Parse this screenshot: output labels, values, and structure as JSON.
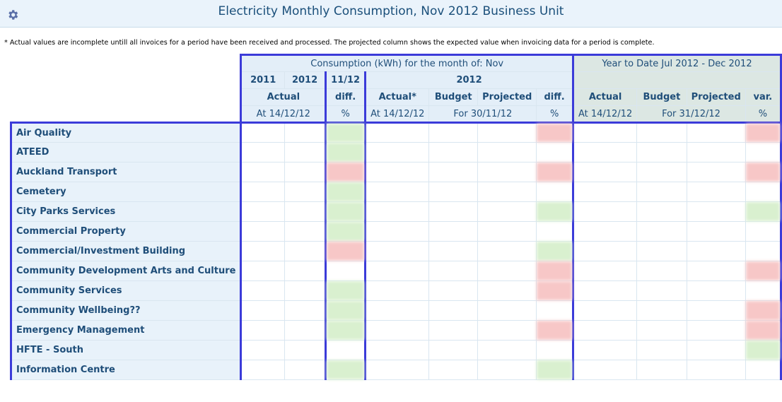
{
  "header": {
    "title": "Electricity  Monthly Consumption, Nov 2012 Business Unit",
    "settings_icon": "gear-icon"
  },
  "note": "* Actual values are incomplete untill all invoices for a period have been received and processed. The projected column shows the expected value when invoicing data for a period is complete.",
  "table": {
    "group_month": "Consumption (kWh) for the month of: Nov",
    "group_ytd": "Year to Date Jul 2012 - Dec 2012",
    "year_2011": "2011",
    "year_2012": "2012",
    "year_1112": "11/12",
    "year_2012b": "2012",
    "h_actual": "Actual",
    "h_diff": "diff.",
    "h_actual_star": "Actual*",
    "h_budget": "Budget",
    "h_projected": "Projected",
    "h_diff2": "diff.",
    "h_ytd_actual": "Actual",
    "h_ytd_budget": "Budget",
    "h_ytd_projected": "Projected",
    "h_var": "var.",
    "s_at1": "At 14/12/12",
    "s_pct1": "%",
    "s_at2": "At 14/12/12",
    "s_for1": "For 30/11/12",
    "s_pct2": "%",
    "s_at3": "At 14/12/12",
    "s_for2": "For 31/12/12",
    "s_pct3": "%",
    "rows": [
      {
        "label": "Air Quality"
      },
      {
        "label": "ATEED"
      },
      {
        "label": "Auckland Transport"
      },
      {
        "label": "Cemetery"
      },
      {
        "label": "City Parks Services"
      },
      {
        "label": "Commercial Property"
      },
      {
        "label": "Commercial/Investment Building"
      },
      {
        "label": "Community Development Arts and Culture"
      },
      {
        "label": "Community Services"
      },
      {
        "label": "Community Wellbeing??"
      },
      {
        "label": "Emergency Management"
      },
      {
        "label": "HFTE - South"
      },
      {
        "label": "Information Centre"
      }
    ]
  },
  "colors": {
    "accent_border": "#3b3bd9",
    "header_bg": "#e3eef8",
    "good": "#d9f0cf",
    "bad": "#f7c7c7"
  }
}
